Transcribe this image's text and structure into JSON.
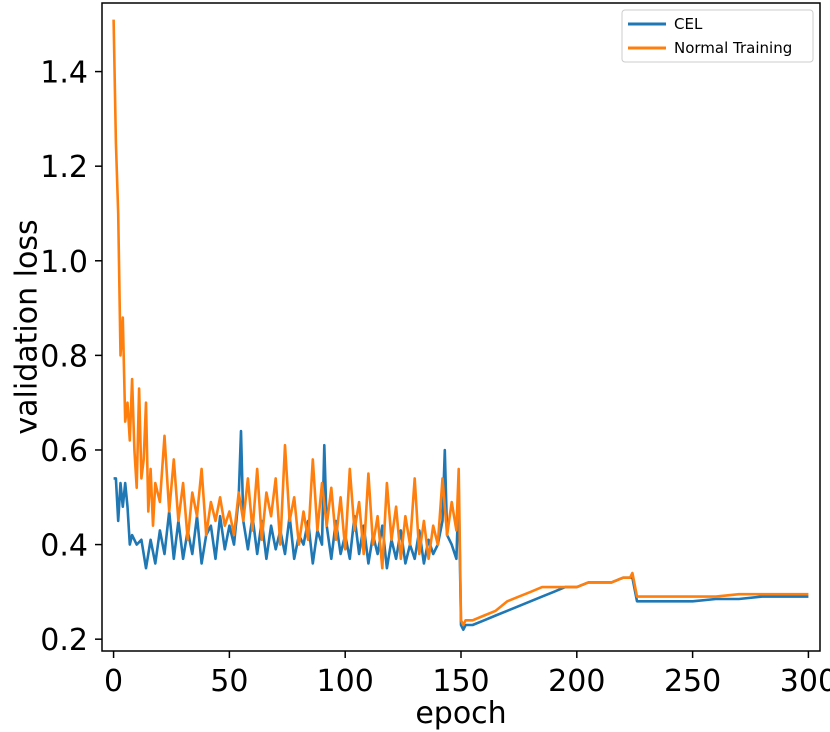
{
  "chart_data": {
    "type": "line",
    "title": "",
    "xlabel": "epoch",
    "ylabel": "validation loss",
    "xlim": [
      -5,
      305
    ],
    "ylim": [
      0.175,
      1.545
    ],
    "xticks": [
      0,
      50,
      100,
      150,
      200,
      250,
      300
    ],
    "xtick_labels": [
      "0",
      "50",
      "100",
      "150",
      "200",
      "250",
      "300"
    ],
    "yticks": [
      0.2,
      0.4,
      0.6,
      0.8,
      1.0,
      1.2,
      1.4
    ],
    "ytick_labels": [
      "0.2",
      "0.4",
      "0.6",
      "0.8",
      "1.0",
      "1.2",
      "1.4"
    ],
    "grid": false,
    "legend_position": "top-right",
    "series": [
      {
        "name": "CEL",
        "color": "#1f77b4",
        "x": [
          0,
          1,
          2,
          3,
          4,
          5,
          6,
          7,
          8,
          9,
          10,
          12,
          14,
          16,
          18,
          20,
          22,
          24,
          26,
          28,
          30,
          32,
          34,
          36,
          38,
          40,
          42,
          44,
          46,
          48,
          50,
          52,
          54,
          55,
          56,
          58,
          60,
          62,
          64,
          66,
          68,
          70,
          72,
          74,
          76,
          78,
          80,
          82,
          84,
          86,
          88,
          90,
          91,
          92,
          94,
          96,
          98,
          100,
          102,
          104,
          106,
          108,
          110,
          112,
          114,
          116,
          118,
          120,
          122,
          124,
          126,
          128,
          130,
          132,
          134,
          136,
          138,
          140,
          142,
          143,
          144,
          146,
          148,
          149,
          150,
          151,
          152,
          155,
          160,
          165,
          170,
          175,
          180,
          185,
          190,
          195,
          200,
          205,
          210,
          215,
          220,
          224,
          226,
          230,
          240,
          250,
          260,
          270,
          280,
          290,
          300
        ],
        "values": [
          0.54,
          0.54,
          0.45,
          0.53,
          0.48,
          0.53,
          0.48,
          0.4,
          0.42,
          0.41,
          0.4,
          0.41,
          0.35,
          0.41,
          0.36,
          0.43,
          0.38,
          0.47,
          0.37,
          0.45,
          0.37,
          0.43,
          0.38,
          0.46,
          0.36,
          0.42,
          0.44,
          0.37,
          0.46,
          0.39,
          0.44,
          0.4,
          0.5,
          0.64,
          0.45,
          0.39,
          0.46,
          0.38,
          0.45,
          0.37,
          0.44,
          0.39,
          0.43,
          0.38,
          0.46,
          0.37,
          0.42,
          0.4,
          0.45,
          0.36,
          0.43,
          0.4,
          0.61,
          0.44,
          0.37,
          0.45,
          0.38,
          0.42,
          0.37,
          0.46,
          0.38,
          0.44,
          0.36,
          0.42,
          0.38,
          0.44,
          0.35,
          0.41,
          0.37,
          0.43,
          0.36,
          0.4,
          0.37,
          0.43,
          0.36,
          0.41,
          0.38,
          0.4,
          0.45,
          0.6,
          0.42,
          0.4,
          0.37,
          0.52,
          0.23,
          0.22,
          0.23,
          0.23,
          0.24,
          0.25,
          0.26,
          0.27,
          0.28,
          0.29,
          0.3,
          0.31,
          0.31,
          0.32,
          0.32,
          0.32,
          0.33,
          0.33,
          0.28,
          0.28,
          0.28,
          0.28,
          0.285,
          0.285,
          0.29,
          0.29,
          0.29
        ]
      },
      {
        "name": "Normal Training",
        "color": "#ff7f0e",
        "x": [
          0,
          1,
          2,
          3,
          4,
          5,
          6,
          7,
          8,
          9,
          10,
          11,
          12,
          13,
          14,
          15,
          16,
          17,
          18,
          20,
          22,
          24,
          26,
          28,
          30,
          32,
          34,
          36,
          38,
          40,
          42,
          44,
          46,
          48,
          50,
          52,
          54,
          56,
          58,
          60,
          62,
          64,
          66,
          68,
          70,
          72,
          74,
          76,
          78,
          80,
          82,
          84,
          86,
          88,
          90,
          92,
          94,
          96,
          98,
          100,
          102,
          104,
          106,
          108,
          110,
          112,
          114,
          116,
          118,
          120,
          122,
          124,
          126,
          128,
          130,
          132,
          134,
          136,
          138,
          140,
          142,
          144,
          146,
          148,
          149,
          150,
          151,
          152,
          155,
          160,
          165,
          170,
          175,
          180,
          185,
          190,
          195,
          200,
          205,
          210,
          215,
          220,
          223,
          224,
          226,
          230,
          240,
          250,
          260,
          270,
          280,
          290,
          300
        ],
        "values": [
          1.51,
          1.25,
          1.1,
          0.8,
          0.88,
          0.66,
          0.7,
          0.62,
          0.75,
          0.6,
          0.52,
          0.73,
          0.54,
          0.58,
          0.7,
          0.47,
          0.56,
          0.44,
          0.53,
          0.49,
          0.63,
          0.47,
          0.58,
          0.45,
          0.53,
          0.41,
          0.51,
          0.46,
          0.56,
          0.42,
          0.49,
          0.45,
          0.5,
          0.44,
          0.47,
          0.42,
          0.51,
          0.45,
          0.54,
          0.43,
          0.56,
          0.41,
          0.51,
          0.46,
          0.54,
          0.4,
          0.61,
          0.45,
          0.5,
          0.4,
          0.47,
          0.41,
          0.58,
          0.43,
          0.53,
          0.44,
          0.52,
          0.41,
          0.5,
          0.39,
          0.56,
          0.43,
          0.49,
          0.38,
          0.55,
          0.4,
          0.46,
          0.35,
          0.53,
          0.41,
          0.48,
          0.37,
          0.46,
          0.4,
          0.54,
          0.38,
          0.45,
          0.37,
          0.44,
          0.4,
          0.54,
          0.42,
          0.49,
          0.43,
          0.56,
          0.24,
          0.23,
          0.24,
          0.24,
          0.25,
          0.26,
          0.28,
          0.29,
          0.3,
          0.31,
          0.31,
          0.31,
          0.31,
          0.32,
          0.32,
          0.32,
          0.33,
          0.33,
          0.34,
          0.29,
          0.29,
          0.29,
          0.29,
          0.29,
          0.295,
          0.295,
          0.295,
          0.295
        ]
      }
    ]
  }
}
